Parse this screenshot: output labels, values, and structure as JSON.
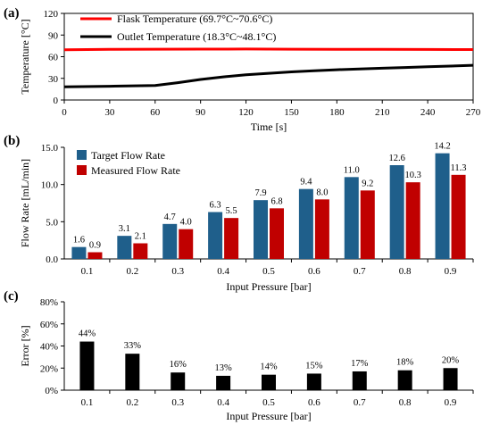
{
  "chart_data": [
    {
      "type": "line",
      "panel_label": "(a)",
      "xlabel": "Time [s]",
      "ylabel": "Temperature [°C]",
      "xlim": [
        0,
        270
      ],
      "ylim": [
        0,
        120
      ],
      "xticks": [
        "0",
        "30",
        "60",
        "90",
        "120",
        "150",
        "180",
        "210",
        "240",
        "270"
      ],
      "yticks": [
        "0",
        "30",
        "60",
        "90",
        "120"
      ],
      "legend_position": "top-left",
      "series": [
        {
          "name": "Flask Temperature (69.7°C~70.6°C)",
          "color": "#ff0000",
          "x": [
            0,
            30,
            60,
            90,
            120,
            150,
            180,
            210,
            240,
            270
          ],
          "y": [
            69.7,
            70.2,
            70.4,
            70.5,
            70.6,
            70.4,
            70.3,
            70.1,
            70.0,
            69.9
          ]
        },
        {
          "name": "Outlet Temperature (18.3°C~48.1°C)",
          "color": "#000000",
          "x": [
            0,
            30,
            60,
            75,
            90,
            105,
            120,
            135,
            150,
            165,
            180,
            195,
            210,
            225,
            240,
            255,
            270
          ],
          "y": [
            18.3,
            19.0,
            20.0,
            24.0,
            28.5,
            32.0,
            35.0,
            37.0,
            39.0,
            40.5,
            42.0,
            43.0,
            44.0,
            45.0,
            46.0,
            47.0,
            48.1
          ]
        }
      ]
    },
    {
      "type": "bar",
      "panel_label": "(b)",
      "xlabel": "Input Pressure [bar]",
      "ylabel": "Flow Rate [mL/min]",
      "ylim": [
        0,
        15
      ],
      "yticks": [
        "0.0",
        "5.0",
        "10.0",
        "15.0"
      ],
      "legend_position": "top-left",
      "categories": [
        "0.1",
        "0.2",
        "0.3",
        "0.4",
        "0.5",
        "0.6",
        "0.7",
        "0.8",
        "0.9"
      ],
      "series": [
        {
          "name": "Target Flow Rate",
          "color": "#1f5f8b",
          "values": [
            1.6,
            3.1,
            4.7,
            6.3,
            7.9,
            9.4,
            11.0,
            12.6,
            14.2
          ],
          "labels": [
            "1.6",
            "3.1",
            "4.7",
            "6.3",
            "7.9",
            "9.4",
            "11.0",
            "12.6",
            "14.2"
          ]
        },
        {
          "name": "Measured Flow Rate",
          "color": "#c00000",
          "values": [
            0.9,
            2.1,
            4.0,
            5.5,
            6.8,
            8.0,
            9.2,
            10.3,
            11.3
          ],
          "labels": [
            "0.9",
            "2.1",
            "4.0",
            "5.5",
            "6.8",
            "8.0",
            "9.2",
            "10.3",
            "11.3"
          ]
        }
      ]
    },
    {
      "type": "bar",
      "panel_label": "(c)",
      "xlabel": "Input Pressure [bar]",
      "ylabel": "Error [%]",
      "ylim": [
        0,
        80
      ],
      "yticks": [
        "0%",
        "20%",
        "40%",
        "60%",
        "80%"
      ],
      "categories": [
        "0.1",
        "0.2",
        "0.3",
        "0.4",
        "0.5",
        "0.6",
        "0.7",
        "0.8",
        "0.9"
      ],
      "series": [
        {
          "color": "#000000",
          "values": [
            44,
            33,
            16,
            13,
            14,
            15,
            17,
            18,
            20
          ],
          "labels": [
            "44%",
            "33%",
            "16%",
            "13%",
            "14%",
            "15%",
            "17%",
            "18%",
            "20%"
          ]
        }
      ]
    }
  ]
}
